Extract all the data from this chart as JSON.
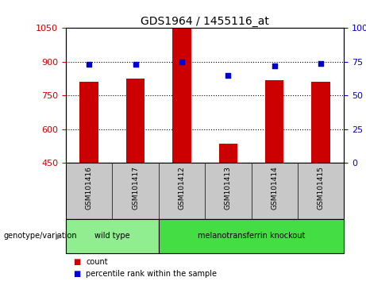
{
  "title": "GDS1964 / 1455116_at",
  "samples": [
    "GSM101416",
    "GSM101417",
    "GSM101412",
    "GSM101413",
    "GSM101414",
    "GSM101415"
  ],
  "counts": [
    810,
    825,
    1050,
    535,
    820,
    810
  ],
  "percentile_ranks": [
    73,
    73,
    75,
    65,
    72,
    74
  ],
  "ylim_left": [
    450,
    1050
  ],
  "ylim_right": [
    0,
    100
  ],
  "yticks_left": [
    450,
    600,
    750,
    900,
    1050
  ],
  "yticks_right": [
    0,
    25,
    50,
    75,
    100
  ],
  "groups": [
    {
      "label": "wild type",
      "indices": [
        0,
        1
      ],
      "color": "#90EE90"
    },
    {
      "label": "melanotransferrin knockout",
      "indices": [
        2,
        3,
        4,
        5
      ],
      "color": "#44DD44"
    }
  ],
  "bar_color": "#CC0000",
  "point_color": "#0000CC",
  "sample_bg_color": "#C8C8C8",
  "left_tick_color": "#CC0000",
  "right_tick_color": "#0000CC",
  "genotype_label": "genotype/variation",
  "legend_count_label": "count",
  "legend_pct_label": "percentile rank within the sample"
}
